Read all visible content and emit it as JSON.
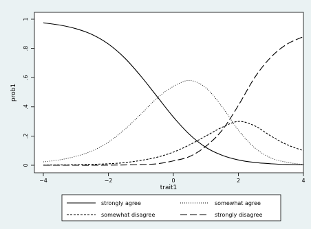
{
  "chart_data": {
    "type": "line",
    "xlabel": "trait1",
    "ylabel": "prob1",
    "xlim": [
      -4,
      4
    ],
    "ylim": [
      0,
      1
    ],
    "xticks": [
      -4,
      -2,
      0,
      2,
      4
    ],
    "xtick_labels": [
      "−4",
      "−2",
      "0",
      "2",
      "4"
    ],
    "yticks": [
      0,
      0.2,
      0.4,
      0.6,
      0.8,
      1
    ],
    "ytick_labels": [
      "0",
      ".2",
      ".4",
      ".6",
      ".8",
      "1"
    ],
    "grid": false,
    "legend_position": "bottom",
    "x": [
      -4,
      -3.5,
      -3,
      -2.5,
      -2,
      -1.5,
      -1,
      -0.5,
      0,
      0.5,
      1,
      1.5,
      2,
      2.5,
      3,
      3.5,
      4
    ],
    "series": [
      {
        "name": "strongly agree",
        "style": "solid",
        "values": [
          0.975,
          0.96,
          0.935,
          0.895,
          0.83,
          0.735,
          0.61,
          0.47,
          0.33,
          0.21,
          0.122,
          0.068,
          0.036,
          0.019,
          0.01,
          0.005,
          0.003
        ]
      },
      {
        "name": "somewhat agree",
        "style": "dotted",
        "values": [
          0.023,
          0.037,
          0.061,
          0.098,
          0.158,
          0.245,
          0.35,
          0.46,
          0.54,
          0.58,
          0.53,
          0.4,
          0.24,
          0.12,
          0.05,
          0.02,
          0.005
        ]
      },
      {
        "name": "somewhat disagree",
        "style": "short-dash",
        "values": [
          0.001,
          0.002,
          0.003,
          0.006,
          0.01,
          0.018,
          0.033,
          0.055,
          0.09,
          0.14,
          0.2,
          0.26,
          0.3,
          0.27,
          0.2,
          0.14,
          0.1
        ]
      },
      {
        "name": "strongly disagree",
        "style": "long-dash",
        "values": [
          0,
          0,
          0,
          0,
          0.001,
          0.002,
          0.005,
          0.01,
          0.03,
          0.06,
          0.13,
          0.24,
          0.41,
          0.6,
          0.74,
          0.83,
          0.88
        ]
      }
    ]
  }
}
